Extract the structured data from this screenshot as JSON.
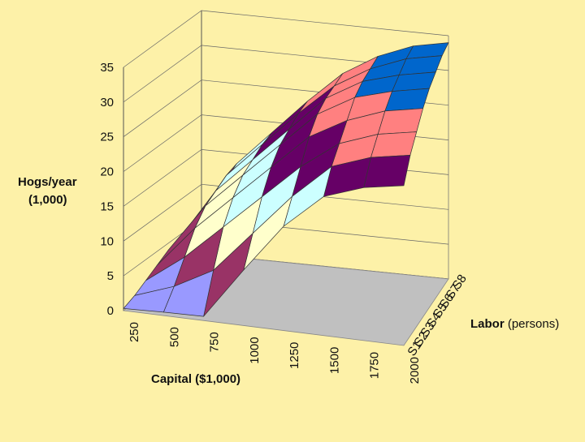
{
  "chart_data": {
    "type": "surface3d",
    "title": "",
    "zlabel_line1": "Hogs/year",
    "zlabel_line2": "(1,000)",
    "xlabel": "Capital ($1,000)",
    "ylabel_bold": "Labor",
    "ylabel_rest": " (persons)",
    "zlim": [
      0,
      35
    ],
    "z_ticks": [
      "0",
      "5",
      "10",
      "15",
      "20",
      "25",
      "30",
      "35"
    ],
    "x": [
      250,
      500,
      750,
      1000,
      1250,
      1500,
      1750,
      2000
    ],
    "x_ticks": [
      "250",
      "500",
      "750",
      "1000",
      "1250",
      "1500",
      "1750",
      "2000"
    ],
    "y": [
      "S1",
      "S2",
      "S3",
      "S4",
      "S5",
      "S6",
      "S7",
      "S8"
    ],
    "grid": true,
    "bands": [
      {
        "range": "0-5",
        "color": "#9999ff"
      },
      {
        "range": "5-10",
        "color": "#993366"
      },
      {
        "range": "10-15",
        "color": "#ffffcc"
      },
      {
        "range": "15-20",
        "color": "#ccffff"
      },
      {
        "range": "20-25",
        "color": "#660066"
      },
      {
        "range": "25-30",
        "color": "#ff8080"
      },
      {
        "range": "30-35",
        "color": "#0066cc"
      }
    ],
    "floor_color": "#c0c0c0",
    "series": [
      {
        "name": "S1",
        "values": [
          0.3,
          0.5,
          0.6,
          8,
          15,
          20,
          22,
          23
        ]
      },
      {
        "name": "S2",
        "values": [
          1,
          3,
          6,
          12,
          18,
          23,
          25,
          26
        ]
      },
      {
        "name": "S3",
        "values": [
          2,
          6,
          11,
          16,
          21,
          25,
          27,
          28
        ]
      },
      {
        "name": "S4",
        "values": [
          3,
          9,
          14,
          19,
          24,
          27,
          29,
          30
        ]
      },
      {
        "name": "S5",
        "values": [
          4,
          11,
          16,
          21,
          26,
          29,
          30.5,
          31.5
        ]
      },
      {
        "name": "S6",
        "values": [
          4.5,
          12,
          17,
          22,
          27,
          30,
          31.5,
          32.5
        ]
      },
      {
        "name": "S7",
        "values": [
          5,
          13,
          18,
          23,
          27.5,
          30.5,
          32.5,
          33.5
        ]
      },
      {
        "name": "S8",
        "values": [
          5.5,
          13.5,
          18.5,
          23.5,
          28,
          31,
          33,
          34
        ]
      }
    ]
  }
}
